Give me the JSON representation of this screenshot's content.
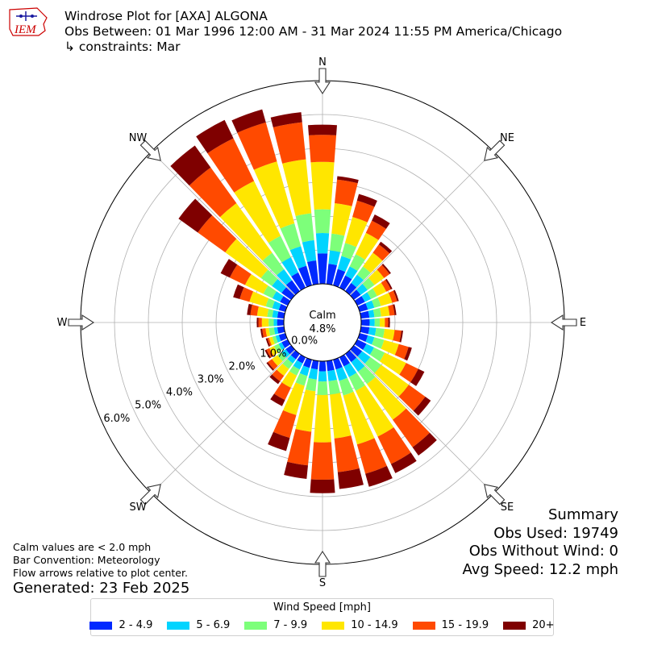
{
  "logo": {
    "text": "IEM"
  },
  "header": {
    "title": "Windrose Plot for [AXA] ALGONA",
    "obs_between": "Obs Between: 01 Mar 1996 12:00 AM - 31 Mar 2024 11:55 PM America/Chicago",
    "constraints": "↳ constraints: Mar"
  },
  "compass": {
    "N": "N",
    "NE": "NE",
    "E": "E",
    "SE": "SE",
    "S": "S",
    "SW": "SW",
    "W": "W",
    "NW": "NW"
  },
  "calm": {
    "label": "Calm",
    "value": "4.8%"
  },
  "notes": {
    "calm_note": "Calm values are < 2.0 mph",
    "bar_convention": "Bar Convention: Meteorology",
    "flow_note": "Flow arrows relative to plot center."
  },
  "generated": "Generated: 23 Feb 2025",
  "summary": {
    "title": "Summary",
    "obs_used": "Obs Used: 19749",
    "obs_without_wind": "Obs Without Wind: 0",
    "avg_speed": "Avg Speed: 12.2 mph"
  },
  "legend": {
    "title": "Wind Speed [mph]",
    "items": [
      {
        "label": "2 - 4.9",
        "color": "#0029ff"
      },
      {
        "label": "5 - 6.9",
        "color": "#00d4ff"
      },
      {
        "label": "7 - 9.9",
        "color": "#7dff7a"
      },
      {
        "label": "10 - 14.9",
        "color": "#ffe600"
      },
      {
        "label": "15 - 19.9",
        "color": "#ff4a00"
      },
      {
        "label": "20+",
        "color": "#7f0000"
      }
    ]
  },
  "chart_data": {
    "type": "windrose",
    "radial_ticks": [
      "0.0%",
      "1.0%",
      "2.0%",
      "3.0%",
      "4.0%",
      "5.0%",
      "6.0%"
    ],
    "rmax": 6.0,
    "calm_percent": 4.8,
    "direction_bin_degrees": 10,
    "directions_deg": [
      0,
      10,
      20,
      30,
      40,
      50,
      60,
      70,
      80,
      90,
      100,
      110,
      120,
      130,
      140,
      150,
      160,
      170,
      180,
      190,
      200,
      210,
      220,
      230,
      240,
      250,
      260,
      270,
      280,
      290,
      300,
      310,
      320,
      330,
      340,
      350
    ],
    "speed_bins": [
      "2 - 4.9",
      "5 - 6.9",
      "7 - 9.9",
      "10 - 14.9",
      "15 - 19.9",
      "20+"
    ],
    "cumulative_percent": [
      [
        0.9,
        1.5,
        2.2,
        3.6,
        4.4,
        4.7
      ],
      [
        0.6,
        1.0,
        1.5,
        2.4,
        3.1,
        3.2
      ],
      [
        0.5,
        0.9,
        1.3,
        2.1,
        2.6,
        2.8
      ],
      [
        0.4,
        0.7,
        1.1,
        1.8,
        2.2,
        2.4
      ],
      [
        0.3,
        0.6,
        0.9,
        1.4,
        1.7,
        1.8
      ],
      [
        0.25,
        0.5,
        0.75,
        1.1,
        1.3,
        1.35
      ],
      [
        0.25,
        0.45,
        0.65,
        0.95,
        1.1,
        1.15
      ],
      [
        0.25,
        0.45,
        0.65,
        1.0,
        1.15,
        1.2
      ],
      [
        0.25,
        0.4,
        0.6,
        0.85,
        1.0,
        1.05
      ],
      [
        0.25,
        0.4,
        0.55,
        0.7,
        0.8,
        0.85
      ],
      [
        0.25,
        0.45,
        0.7,
        1.0,
        1.2,
        1.25
      ],
      [
        0.25,
        0.45,
        0.75,
        1.2,
        1.5,
        1.6
      ],
      [
        0.3,
        0.55,
        0.9,
        1.6,
        2.0,
        2.2
      ],
      [
        0.3,
        0.6,
        1.0,
        2.0,
        2.6,
        2.8
      ],
      [
        0.3,
        0.65,
        1.1,
        2.4,
        3.4,
        3.7
      ],
      [
        0.3,
        0.65,
        1.1,
        2.6,
        3.5,
        3.8
      ],
      [
        0.3,
        0.65,
        1.1,
        2.6,
        3.5,
        3.9
      ],
      [
        0.3,
        0.6,
        1.0,
        2.3,
        3.3,
        3.8
      ],
      [
        0.3,
        0.6,
        1.0,
        2.4,
        3.5,
        3.9
      ],
      [
        0.25,
        0.55,
        0.9,
        2.1,
        3.1,
        3.5
      ],
      [
        0.25,
        0.5,
        0.8,
        1.7,
        2.4,
        2.8
      ],
      [
        0.2,
        0.4,
        0.6,
        1.0,
        1.4,
        1.6
      ],
      [
        0.2,
        0.35,
        0.55,
        0.8,
        1.0,
        1.1
      ],
      [
        0.2,
        0.35,
        0.5,
        0.7,
        0.85,
        0.9
      ],
      [
        0.2,
        0.3,
        0.45,
        0.6,
        0.7,
        0.75
      ],
      [
        0.2,
        0.3,
        0.4,
        0.5,
        0.55,
        0.6
      ],
      [
        0.2,
        0.3,
        0.45,
        0.55,
        0.65,
        0.7
      ],
      [
        0.2,
        0.3,
        0.45,
        0.65,
        0.75,
        0.8
      ],
      [
        0.2,
        0.35,
        0.5,
        0.8,
        1.0,
        1.1
      ],
      [
        0.2,
        0.4,
        0.6,
        1.1,
        1.4,
        1.6
      ],
      [
        0.25,
        0.5,
        0.8,
        1.4,
        1.9,
        2.2
      ],
      [
        0.35,
        0.7,
        1.1,
        2.4,
        3.4,
        4.1
      ],
      [
        0.4,
        0.8,
        1.4,
        3.2,
        4.5,
        5.3
      ],
      [
        0.5,
        1.0,
        1.7,
        3.5,
        4.9,
        5.5
      ],
      [
        0.6,
        1.2,
        1.9,
        3.8,
        5.0,
        5.4
      ],
      [
        0.7,
        1.3,
        2.1,
        3.7,
        4.8,
        5.1
      ]
    ]
  }
}
